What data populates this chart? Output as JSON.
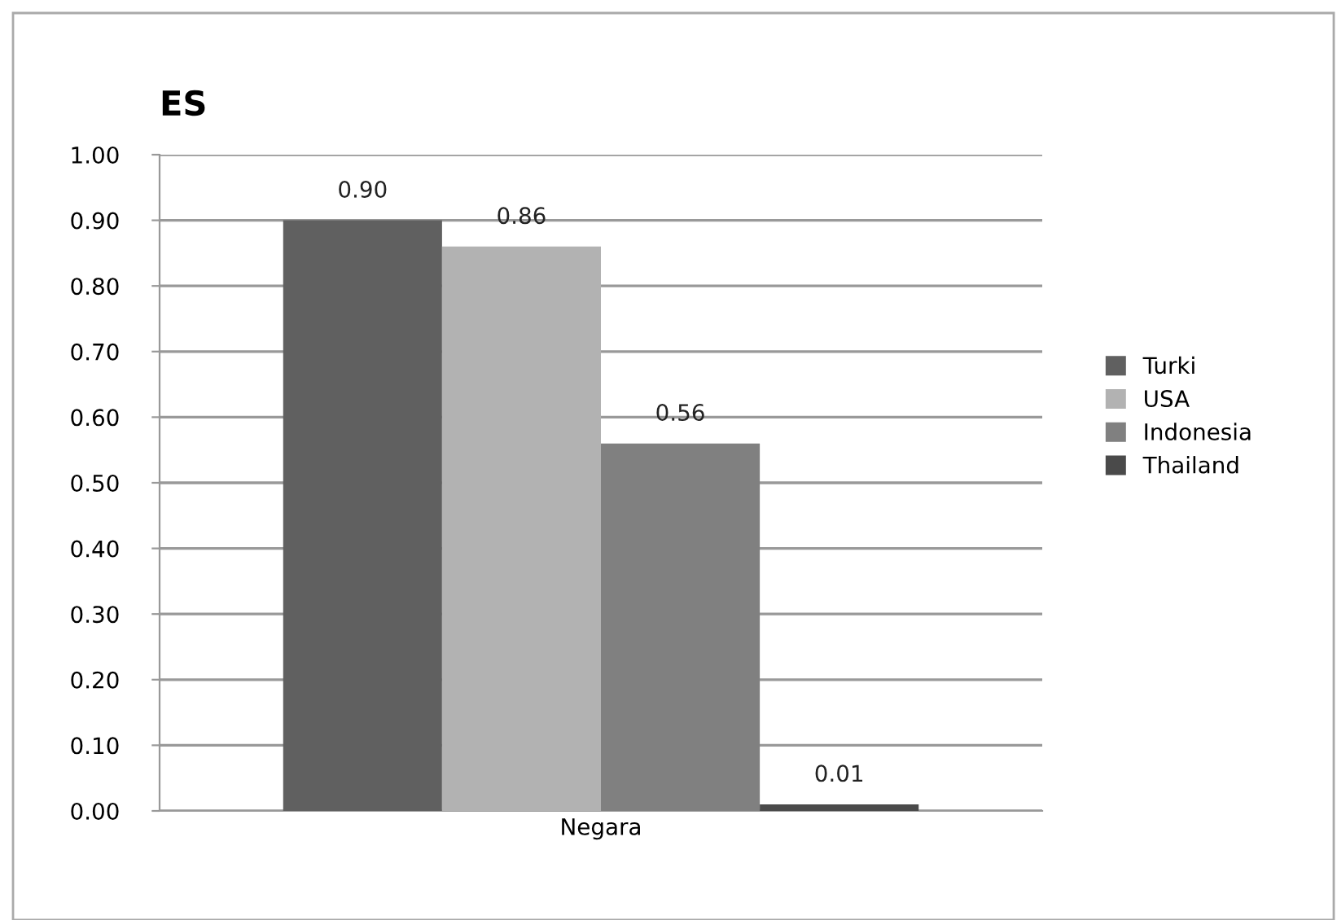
{
  "chart_data": {
    "type": "bar",
    "title": "ES",
    "categories": [
      "Negara"
    ],
    "series": [
      {
        "name": "Turki",
        "color": "#606060",
        "values": [
          0.9
        ],
        "value_labels": [
          "0.90"
        ]
      },
      {
        "name": "USA",
        "color": "#b2b2b2",
        "values": [
          0.86
        ],
        "value_labels": [
          "0.86"
        ]
      },
      {
        "name": "Indonesia",
        "color": "#808080",
        "values": [
          0.56
        ],
        "value_labels": [
          "0.56"
        ]
      },
      {
        "name": "Thailand",
        "color": "#4a4a4a",
        "values": [
          0.01
        ],
        "value_labels": [
          "0.01"
        ]
      }
    ],
    "ylim": [
      0,
      1
    ],
    "yticks": [
      {
        "value": 0,
        "label": "0.00"
      },
      {
        "value": 0.1,
        "label": "0.10"
      },
      {
        "value": 0.2,
        "label": "0.20"
      },
      {
        "value": 0.3,
        "label": "0.30"
      },
      {
        "value": 0.4,
        "label": "0.40"
      },
      {
        "value": 0.5,
        "label": "0.50"
      },
      {
        "value": 0.6,
        "label": "0.60"
      },
      {
        "value": 0.7,
        "label": "0.70"
      },
      {
        "value": 0.8,
        "label": "0.80"
      },
      {
        "value": 0.9,
        "label": "0.90"
      },
      {
        "value": 1,
        "label": "1.00"
      }
    ],
    "grid": "y",
    "legend": "right"
  }
}
